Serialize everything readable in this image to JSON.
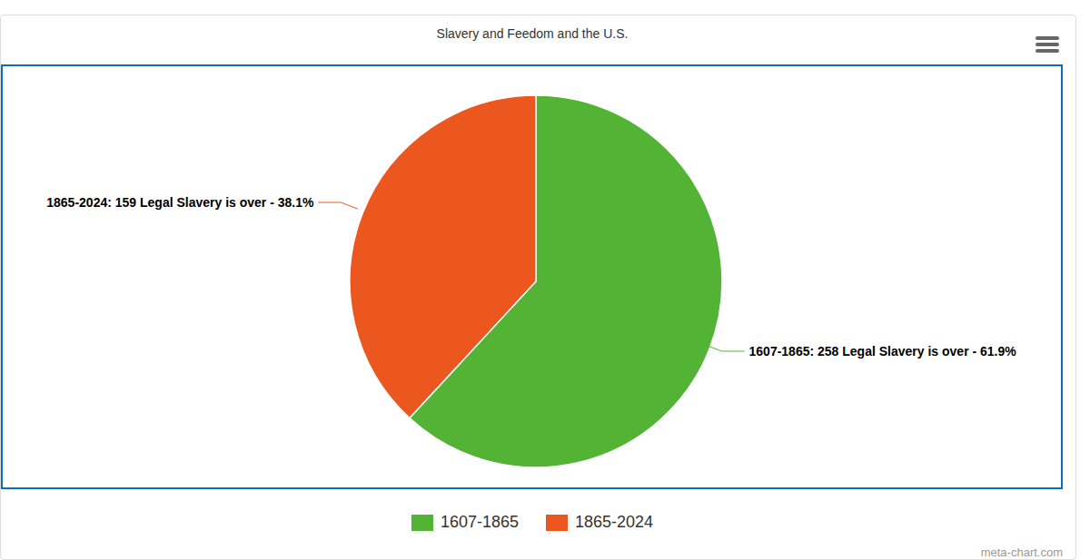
{
  "chart_data": {
    "type": "pie",
    "title": "Slavery and Feedom and the U.S.",
    "categories": [
      "1607-1865",
      "1865-2024"
    ],
    "values": [
      258,
      159
    ],
    "value_labels": [
      "1607-1865: 258 Legal Slavery is over - 61.9%",
      "1865-2024: 159 Legal Slavery is over - 38.1%"
    ],
    "colors": [
      "#52b335",
      "#eb571f"
    ],
    "data_labels": true,
    "legend": "bottom",
    "watermark": "meta-chart.com"
  }
}
